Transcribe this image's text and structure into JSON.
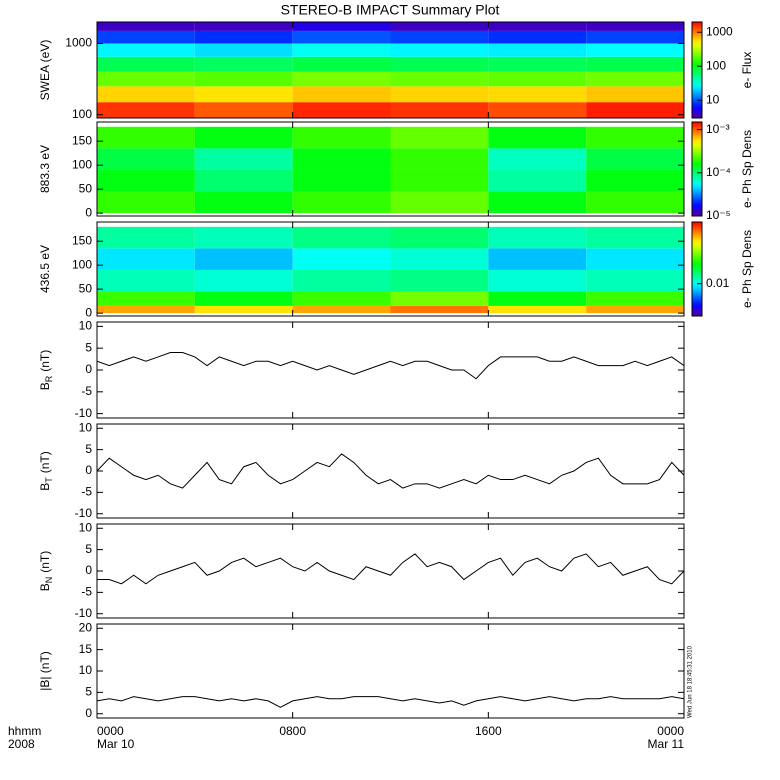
{
  "title": "STEREO-B IMPACT Summary Plot",
  "annotation": "Wed Jun 18 18:45:31 2010",
  "x_axis": {
    "xlim": [
      0,
      24
    ],
    "xticks": [
      {
        "value": 0,
        "label": "0000"
      },
      {
        "value": 8,
        "label": "0800"
      },
      {
        "value": 16,
        "label": "1600"
      },
      {
        "value": 24,
        "label": "0000"
      }
    ],
    "xlabel_lines": [
      "hhmm",
      "2008"
    ],
    "dates": [
      "Mar 10",
      "Mar 11"
    ]
  },
  "chart_data": [
    {
      "type": "heatmap",
      "ylabel": "SWEA (eV)",
      "ylog": true,
      "ylim": [
        90,
        2000
      ],
      "yticks": [
        100,
        1000
      ],
      "x_edges": [
        0,
        4,
        8,
        12,
        16,
        20,
        24
      ],
      "y_edges": [
        90,
        150,
        250,
        400,
        650,
        1000,
        1500,
        2000
      ],
      "values": [
        [
          1500,
          1200,
          1600,
          1500,
          1300,
          1700
        ],
        [
          600,
          550,
          650,
          600,
          580,
          650
        ],
        [
          200,
          180,
          220,
          200,
          190,
          210
        ],
        [
          70,
          65,
          75,
          70,
          68,
          72
        ],
        [
          25,
          22,
          28,
          25,
          24,
          26
        ],
        [
          9,
          8,
          10,
          9,
          8,
          9
        ],
        [
          4,
          4,
          5,
          4,
          4,
          4
        ]
      ],
      "colorbar_label": "e- Flux",
      "zlog": true,
      "zlim": [
        3,
        2000
      ],
      "zticks": [
        10,
        100,
        1000
      ]
    },
    {
      "type": "heatmap",
      "ylabel": "883.3 eV",
      "ylog": false,
      "ylim": [
        -6,
        190
      ],
      "yticks": [
        0,
        50,
        100,
        150
      ],
      "x_edges": [
        0,
        4,
        8,
        12,
        16,
        20,
        24
      ],
      "y_edges": [
        0,
        45,
        90,
        135,
        180
      ],
      "values": [
        [
          0.0002,
          0.00015,
          0.0002,
          0.00025,
          0.00015,
          0.0002
        ],
        [
          0.00015,
          0.0001,
          0.00015,
          0.0002,
          8e-05,
          0.00015
        ],
        [
          0.00012,
          8e-05,
          0.00015,
          0.0002,
          7e-05,
          0.00012
        ],
        [
          0.0002,
          0.00015,
          0.0002,
          0.00025,
          0.00015,
          0.0002
        ]
      ],
      "colorbar_label": "e- Ph Sp Dens",
      "zlog": true,
      "zlim": [
        1e-05,
        0.0015
      ],
      "zticks": [
        {
          "value": 1e-05,
          "label": "10⁻⁵"
        },
        {
          "value": 0.0001,
          "label": "10⁻⁴"
        },
        {
          "value": 0.001,
          "label": "10⁻³"
        }
      ]
    },
    {
      "type": "heatmap",
      "ylabel": "436.5 eV",
      "ylog": false,
      "ylim": [
        -6,
        190
      ],
      "yticks": [
        0,
        50,
        100,
        150
      ],
      "x_edges": [
        0,
        4,
        8,
        12,
        16,
        20,
        24
      ],
      "y_edges": [
        0,
        15,
        45,
        90,
        135,
        180
      ],
      "values": [
        [
          0.06,
          0.05,
          0.06,
          0.07,
          0.05,
          0.06
        ],
        [
          0.025,
          0.02,
          0.025,
          0.03,
          0.02,
          0.025
        ],
        [
          0.012,
          0.011,
          0.013,
          0.014,
          0.011,
          0.012
        ],
        [
          0.009,
          0.008,
          0.01,
          0.011,
          0.008,
          0.009
        ],
        [
          0.013,
          0.012,
          0.014,
          0.015,
          0.012,
          0.013
        ]
      ],
      "colorbar_label": "e- Ph Sp Dens",
      "zlog": true,
      "zlim": [
        0.003,
        0.1
      ],
      "zticks": [
        0.01
      ]
    },
    {
      "type": "line",
      "ylabel": "B",
      "ylabel_sub": "R",
      "ylabel_unit": "(nT)",
      "ylim": [
        -11,
        11
      ],
      "yticks": [
        -10,
        -5,
        0,
        5,
        10
      ],
      "color": "#000000",
      "x": [
        0,
        0.5,
        1,
        1.5,
        2,
        2.5,
        3,
        3.5,
        4,
        4.5,
        5,
        5.5,
        6,
        6.5,
        7,
        7.5,
        8,
        8.5,
        9,
        9.5,
        10,
        10.5,
        11,
        11.5,
        12,
        12.5,
        13,
        13.5,
        14,
        14.5,
        15,
        15.5,
        16,
        16.5,
        17,
        17.5,
        18,
        18.5,
        19,
        19.5,
        20,
        20.5,
        21,
        21.5,
        22,
        22.5,
        23,
        23.5,
        24
      ],
      "values": [
        2,
        1,
        2,
        3,
        2,
        3,
        4,
        4,
        3,
        1,
        3,
        2,
        1,
        2,
        2,
        1,
        2,
        1,
        0,
        1,
        0,
        -1,
        0,
        1,
        2,
        1,
        2,
        2,
        1,
        0,
        0,
        -2,
        1,
        3,
        3,
        3,
        3,
        2,
        2,
        3,
        2,
        1,
        1,
        1,
        2,
        1,
        2,
        3,
        1
      ]
    },
    {
      "type": "line",
      "ylabel": "B",
      "ylabel_sub": "T",
      "ylabel_unit": "(nT)",
      "ylim": [
        -11,
        11
      ],
      "yticks": [
        -10,
        -5,
        0,
        5,
        10
      ],
      "color": "#000000",
      "x": [
        0,
        0.5,
        1,
        1.5,
        2,
        2.5,
        3,
        3.5,
        4,
        4.5,
        5,
        5.5,
        6,
        6.5,
        7,
        7.5,
        8,
        8.5,
        9,
        9.5,
        10,
        10.5,
        11,
        11.5,
        12,
        12.5,
        13,
        13.5,
        14,
        14.5,
        15,
        15.5,
        16,
        16.5,
        17,
        17.5,
        18,
        18.5,
        19,
        19.5,
        20,
        20.5,
        21,
        21.5,
        22,
        22.5,
        23,
        23.5,
        24
      ],
      "values": [
        0,
        3,
        1,
        -1,
        -2,
        -1,
        -3,
        -4,
        -1,
        2,
        -2,
        -3,
        1,
        2,
        -1,
        -3,
        -2,
        0,
        2,
        1,
        4,
        2,
        -1,
        -3,
        -2,
        -4,
        -3,
        -3,
        -4,
        -3,
        -2,
        -3,
        -1,
        -2,
        -2,
        -1,
        -2,
        -3,
        -1,
        0,
        2,
        3,
        -1,
        -3,
        -3,
        -3,
        -2,
        2,
        -1
      ]
    },
    {
      "type": "line",
      "ylabel": "B",
      "ylabel_sub": "N",
      "ylabel_unit": "(nT)",
      "ylim": [
        -11,
        11
      ],
      "yticks": [
        -10,
        -5,
        0,
        5,
        10
      ],
      "color": "#000000",
      "x": [
        0,
        0.5,
        1,
        1.5,
        2,
        2.5,
        3,
        3.5,
        4,
        4.5,
        5,
        5.5,
        6,
        6.5,
        7,
        7.5,
        8,
        8.5,
        9,
        9.5,
        10,
        10.5,
        11,
        11.5,
        12,
        12.5,
        13,
        13.5,
        14,
        14.5,
        15,
        15.5,
        16,
        16.5,
        17,
        17.5,
        18,
        18.5,
        19,
        19.5,
        20,
        20.5,
        21,
        21.5,
        22,
        22.5,
        23,
        23.5,
        24
      ],
      "values": [
        -2,
        -2,
        -3,
        -1,
        -3,
        -1,
        0,
        1,
        2,
        -1,
        0,
        2,
        3,
        1,
        2,
        3,
        1,
        0,
        2,
        0,
        -1,
        -2,
        1,
        0,
        -1,
        2,
        4,
        1,
        2,
        1,
        -2,
        0,
        2,
        3,
        -1,
        2,
        3,
        1,
        0,
        3,
        4,
        1,
        2,
        -1,
        0,
        1,
        -2,
        -3,
        0
      ]
    },
    {
      "type": "line",
      "ylabel": "|B| (nT)",
      "ylim": [
        -1,
        21
      ],
      "yticks": [
        0,
        5,
        10,
        15,
        20
      ],
      "color": "#000000",
      "x": [
        0,
        0.5,
        1,
        1.5,
        2,
        2.5,
        3,
        3.5,
        4,
        4.5,
        5,
        5.5,
        6,
        6.5,
        7,
        7.5,
        8,
        8.5,
        9,
        9.5,
        10,
        10.5,
        11,
        11.5,
        12,
        12.5,
        13,
        13.5,
        14,
        14.5,
        15,
        15.5,
        16,
        16.5,
        17,
        17.5,
        18,
        18.5,
        19,
        19.5,
        20,
        20.5,
        21,
        21.5,
        22,
        22.5,
        23,
        23.5,
        24
      ],
      "values": [
        3,
        3.5,
        3,
        4,
        3.5,
        3,
        3.5,
        4,
        4,
        3.5,
        3,
        3.5,
        3,
        3.5,
        3,
        1.5,
        3,
        3.5,
        4,
        3.5,
        3.5,
        4,
        4,
        4,
        3.5,
        3,
        3.5,
        3,
        2.5,
        3,
        2,
        3,
        3.5,
        4,
        3.5,
        3,
        3.5,
        4,
        3.5,
        3,
        3.5,
        3.5,
        4,
        3.5,
        3.5,
        3.5,
        3.5,
        4,
        3.5
      ]
    }
  ]
}
